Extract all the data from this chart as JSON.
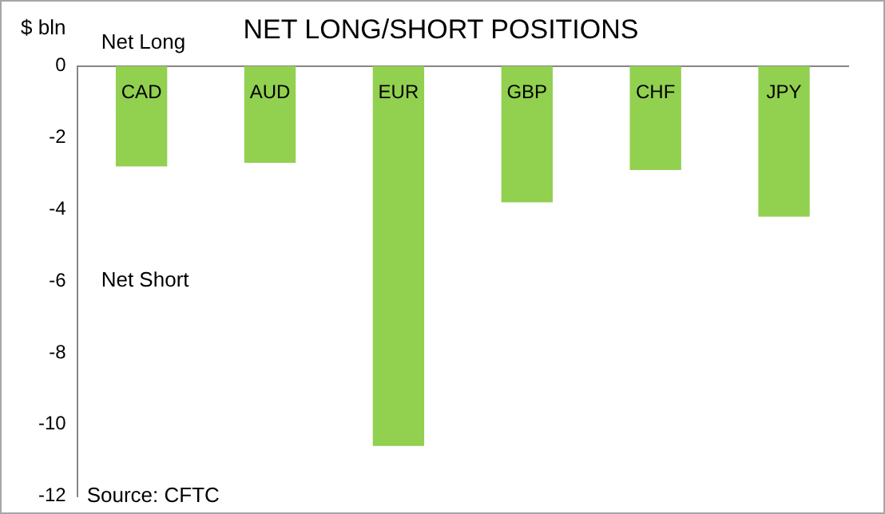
{
  "chart_data": {
    "type": "bar",
    "title": "NET LONG/SHORT POSITIONS",
    "ylabel": "$ bln",
    "categories": [
      "CAD",
      "AUD",
      "EUR",
      "GBP",
      "CHF",
      "JPY"
    ],
    "values": [
      -2.8,
      -2.7,
      -10.6,
      -3.8,
      -2.9,
      -4.2
    ],
    "color": "#92d050",
    "ylim": [
      -12,
      0
    ],
    "yticks": [
      0,
      -2,
      -4,
      -6,
      -8,
      -10,
      -12
    ],
    "grid": false,
    "legend": false,
    "annotations": [
      "Net Long",
      "Net Short",
      "Source: CFTC"
    ]
  }
}
